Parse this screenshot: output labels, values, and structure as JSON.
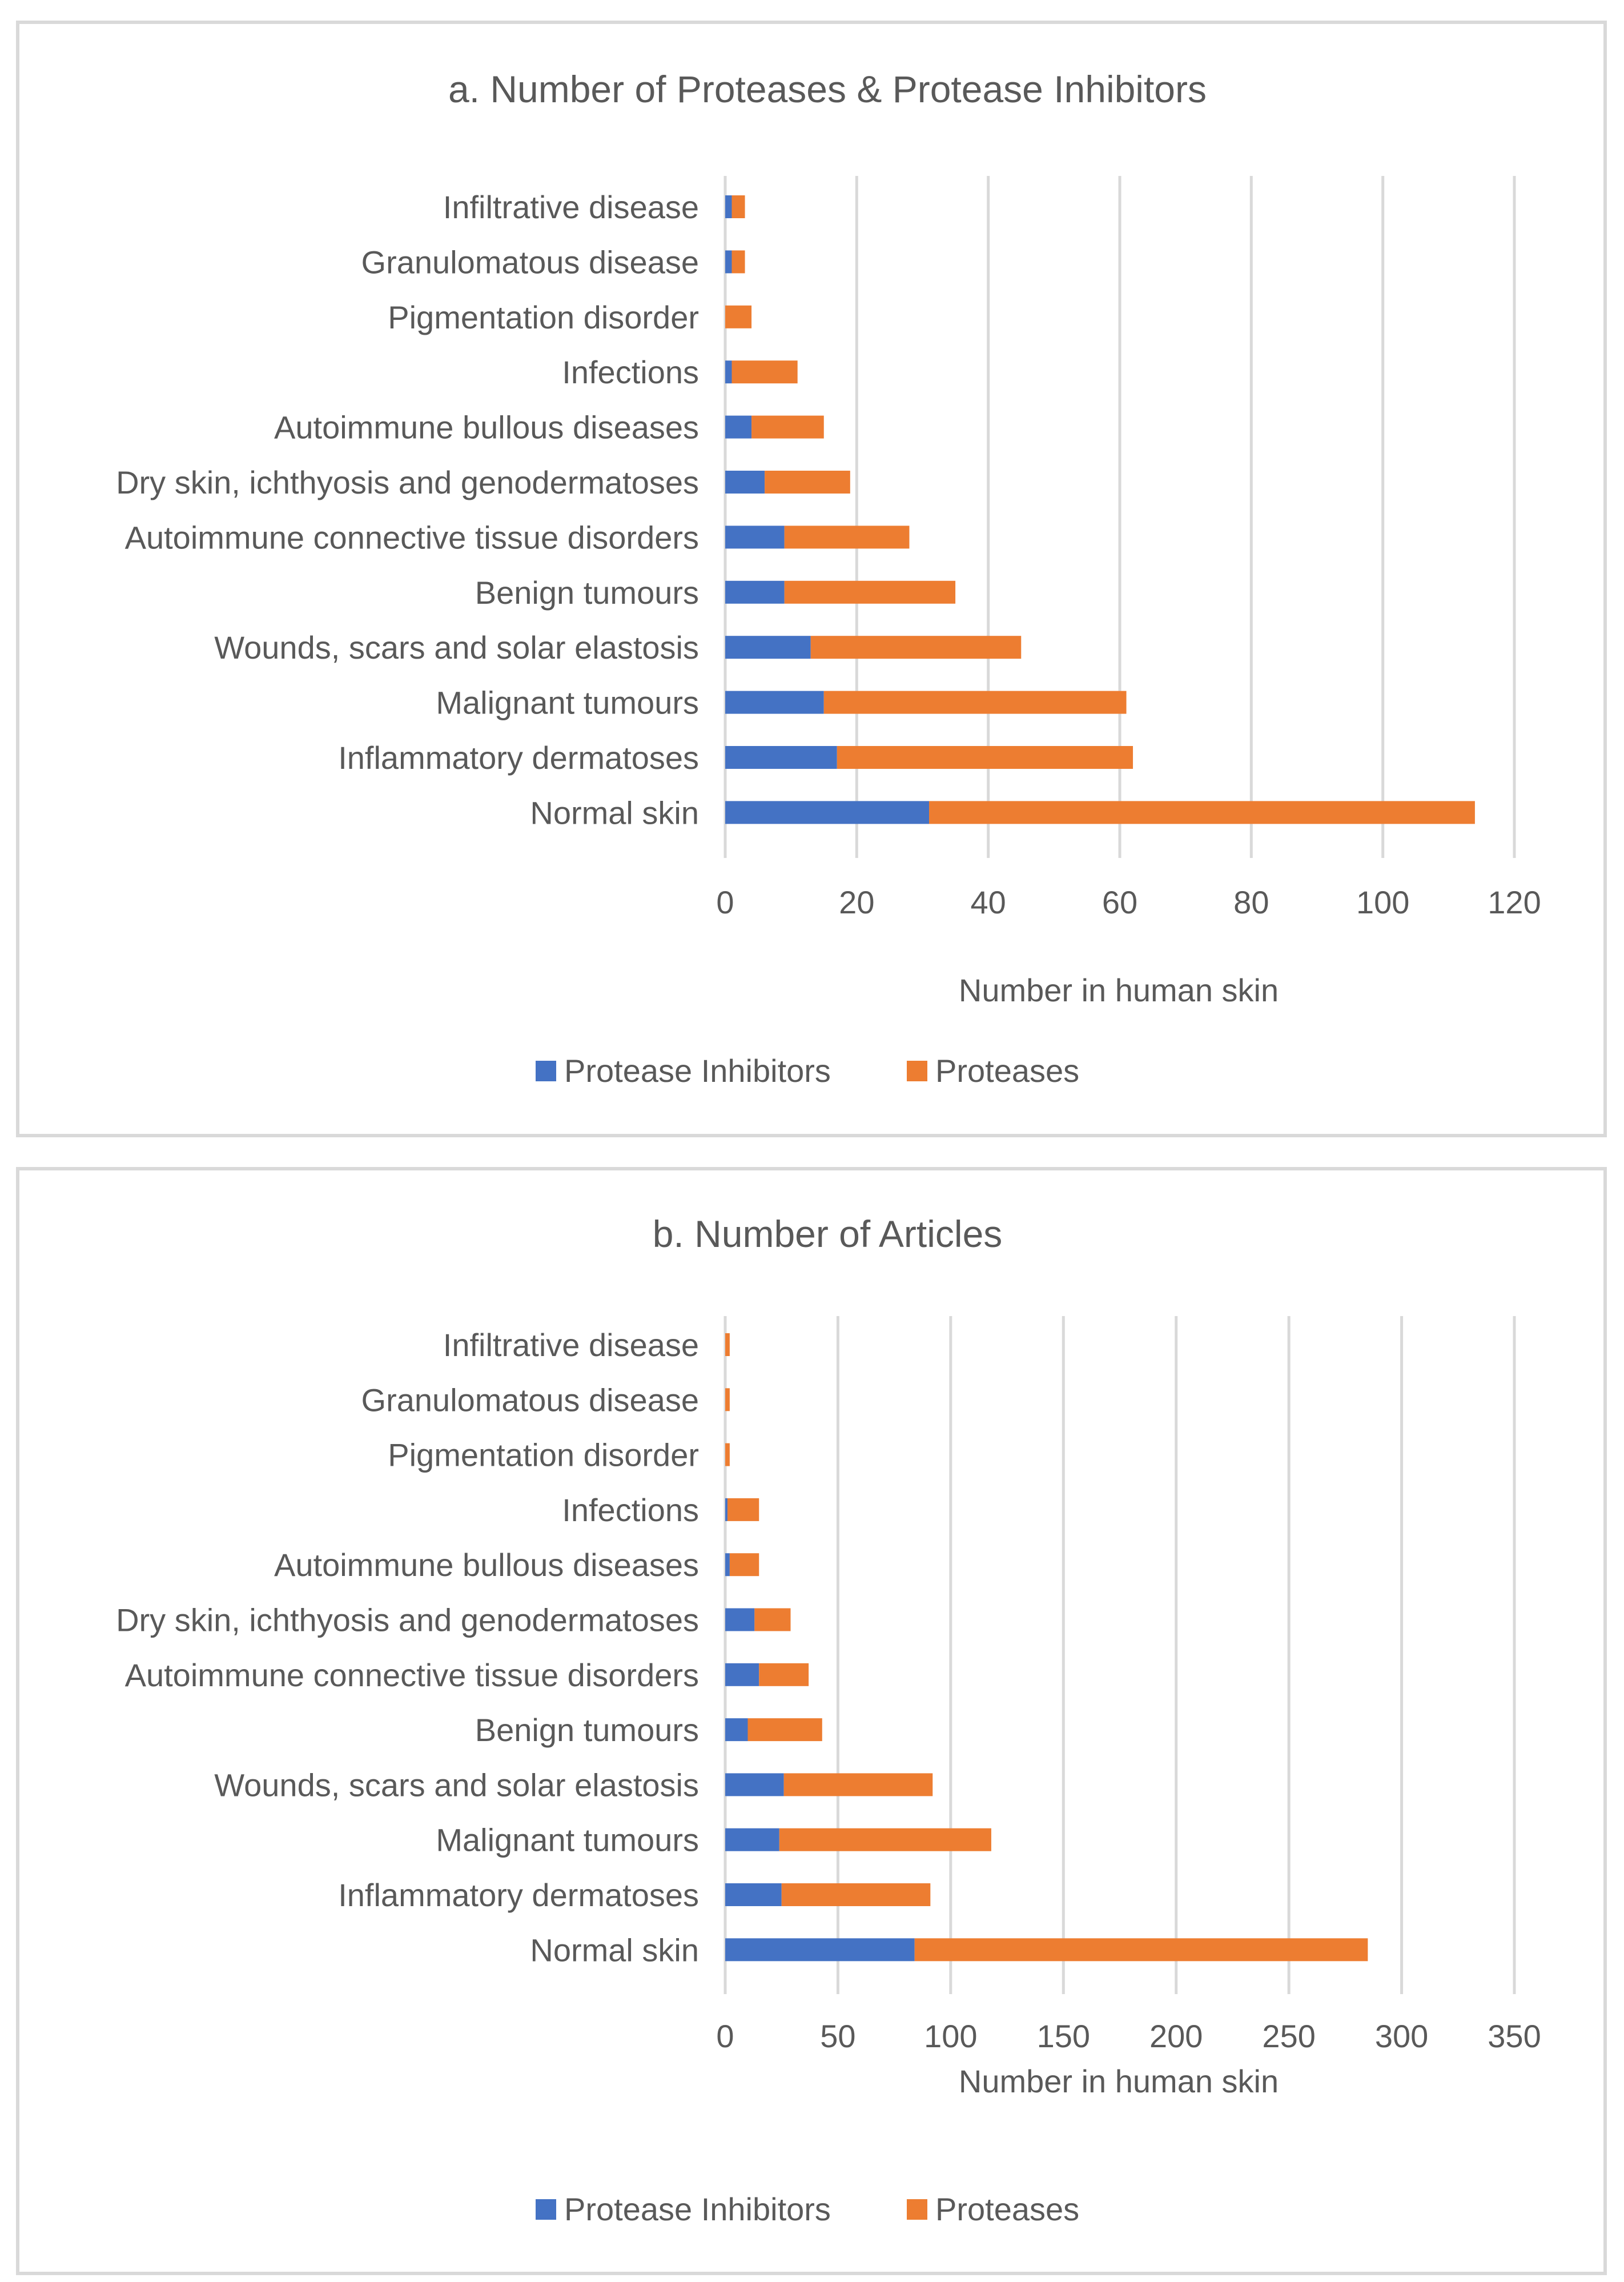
{
  "colors": {
    "inhibitors": "#4472c4",
    "proteases": "#ed7d31"
  },
  "chart_data": [
    {
      "type": "bar",
      "orientation": "horizontal",
      "stacked": true,
      "title": "a. Number of Proteases & Protease Inhibitors",
      "xlabel": "Number in human skin",
      "ylabel": "",
      "xlim": [
        0,
        120
      ],
      "ticks": [
        "0",
        "20",
        "40",
        "60",
        "80",
        "100",
        "120"
      ],
      "tick_values": [
        0,
        20,
        40,
        60,
        80,
        100,
        120
      ],
      "grid": true,
      "legend": "bottom",
      "categories": [
        "Infiltrative disease",
        "Granulomatous disease",
        "Pigmentation disorder",
        "Infections",
        "Autoimmune bullous diseases",
        "Dry skin, ichthyosis and genodermatoses",
        "Autoimmune connective tissue disorders",
        "Benign tumours",
        "Wounds, scars and solar elastosis",
        "Malignant tumours",
        "Inflammatory dermatoses",
        "Normal skin"
      ],
      "series": [
        {
          "name": "Protease Inhibitors",
          "color": "#4472c4",
          "values": [
            1,
            1,
            0,
            1,
            4,
            6,
            9,
            9,
            13,
            15,
            17,
            31
          ]
        },
        {
          "name": "Proteases",
          "color": "#ed7d31",
          "values": [
            2,
            2,
            4,
            10,
            11,
            13,
            19,
            26,
            32,
            46,
            45,
            83
          ]
        }
      ]
    },
    {
      "type": "bar",
      "orientation": "horizontal",
      "stacked": true,
      "title": "b. Number of Articles",
      "xlabel": "Number in human skin",
      "ylabel": "",
      "xlim": [
        0,
        350
      ],
      "ticks": [
        "0",
        "50",
        "100",
        "150",
        "200",
        "250",
        "300",
        "350"
      ],
      "tick_values": [
        0,
        50,
        100,
        150,
        200,
        250,
        300,
        350
      ],
      "grid": true,
      "legend": "bottom",
      "categories": [
        "Infiltrative disease",
        "Granulomatous disease",
        "Pigmentation disorder",
        "Infections",
        "Autoimmune bullous diseases",
        "Dry skin, ichthyosis and genodermatoses",
        "Autoimmune connective tissue disorders",
        "Benign tumours",
        "Wounds, scars and solar elastosis",
        "Malignant tumours",
        "Inflammatory dermatoses",
        "Normal skin"
      ],
      "series": [
        {
          "name": "Protease Inhibitors",
          "color": "#4472c4",
          "values": [
            0,
            0,
            0,
            1,
            2,
            13,
            15,
            10,
            26,
            24,
            25,
            84
          ]
        },
        {
          "name": "Proteases",
          "color": "#ed7d31",
          "values": [
            2,
            2,
            2,
            14,
            13,
            16,
            22,
            33,
            66,
            94,
            66,
            201
          ]
        }
      ]
    }
  ]
}
